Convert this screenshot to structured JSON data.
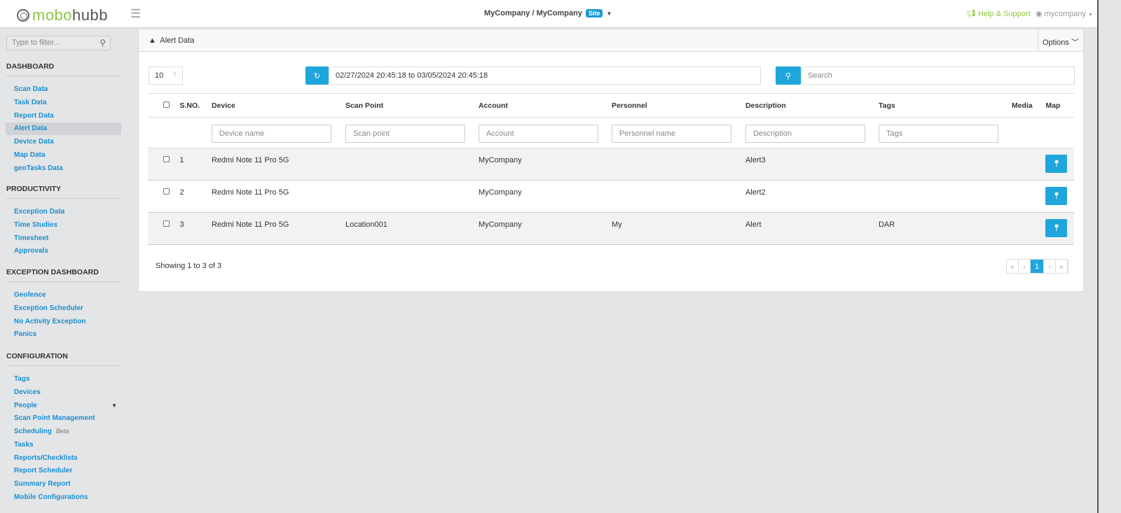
{
  "header": {
    "logo_green": "mobo",
    "logo_dark": "hubb",
    "breadcrumb": "MyCompany / MyCompany",
    "site_badge": "Site",
    "help": "Help & Support",
    "user": "mycompany"
  },
  "sidebar": {
    "filter_placeholder": "Type to filter...",
    "sections": [
      {
        "title": "DASHBOARD",
        "items": [
          "Scan Data",
          "Task Data",
          "Report Data",
          "Alert Data",
          "Device Data",
          "Map Data",
          "geoTasks Data"
        ]
      },
      {
        "title": "PRODUCTIVITY",
        "items": [
          "Exception Data",
          "Time Studies",
          "Timesheet",
          "Approvals"
        ]
      },
      {
        "title": "EXCEPTION DASHBOARD",
        "items": [
          "Geofence",
          "Exception Scheduler",
          "No Activity Exception",
          "Panics"
        ]
      },
      {
        "title": "CONFIGURATION",
        "items": [
          "Tags",
          "Devices",
          "People",
          "Scan Point Management",
          "Scheduling",
          "Tasks",
          "Reports/Checklists",
          "Report Scheduler",
          "Summary Report",
          "Mobile Configurations"
        ]
      }
    ],
    "beta": "Beta",
    "active": "Alert Data"
  },
  "panel": {
    "title": "Alert Data",
    "options": "Options",
    "page_length": "10",
    "date_range": "02/27/2024 20:45:18 to 03/05/2024 20:45:18",
    "search_placeholder": "Search",
    "columns": [
      "S.NO.",
      "Device",
      "Scan Point",
      "Account",
      "Personnel",
      "Description",
      "Tags",
      "Media",
      "Map"
    ],
    "filters": [
      "Device name",
      "Scan point",
      "Account",
      "Personnel name",
      "Description",
      "Tags"
    ],
    "rows": [
      [
        "1",
        "Redmi Note 11 Pro 5G",
        "",
        "MyCompany",
        "",
        "Alert3",
        ""
      ],
      [
        "2",
        "Redmi Note 11 Pro 5G",
        "",
        "MyCompany",
        "",
        "Alert2",
        ""
      ],
      [
        "3",
        "Redmi Note 11 Pro 5G",
        "Location001",
        "MyCompany",
        "My",
        "Alert",
        "DAR"
      ]
    ],
    "info": "Showing 1 to 3 of 3",
    "pager": [
      "«",
      "‹",
      "1",
      "›",
      "»"
    ]
  },
  "colors": {
    "accent": "#1fa6dc",
    "brand_green": "#8dc63f",
    "link": "#1a8fd0"
  }
}
